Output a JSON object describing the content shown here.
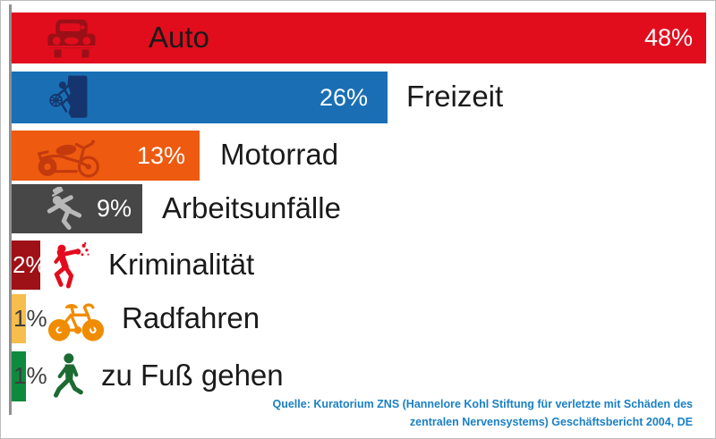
{
  "page": {
    "background": "#ffffff",
    "frame_border": "#bdbdbd",
    "axis_color": "#8f8f8f"
  },
  "chart_data": {
    "type": "bar",
    "orientation": "horizontal",
    "title": "",
    "xlabel": "",
    "ylabel": "",
    "xlim": [
      0,
      48
    ],
    "unit": "%",
    "grid": false,
    "legend": "none",
    "categories": [
      "Auto",
      "Freizeit",
      "Motorrad",
      "Arbeitsunfälle",
      "Kriminalität",
      "Radfahren",
      "zu Fuß gehen"
    ],
    "values": [
      48,
      26,
      13,
      9,
      2,
      1,
      1
    ],
    "bars": [
      {
        "label": "Auto",
        "value": 48,
        "pct_label": "48%",
        "color": "#e10d1d",
        "icon": "car-icon",
        "icon_color": "#9b1016",
        "pct_color": "#ffffff"
      },
      {
        "label": "Freizeit",
        "value": 26,
        "pct_label": "26%",
        "color": "#1a6fb4",
        "icon": "climber-icon",
        "icon_color": "#16356e",
        "pct_color": "#ffffff"
      },
      {
        "label": "Motorrad",
        "value": 13,
        "pct_label": "13%",
        "color": "#ee5a0f",
        "icon": "motorcycle-icon",
        "icon_color": "#c43a0e",
        "pct_color": "#ffffff"
      },
      {
        "label": "Arbeitsunfälle",
        "value": 9,
        "pct_label": "9%",
        "color": "#474747",
        "icon": "falling-person-icon",
        "icon_color": "#b8b8b8",
        "pct_color": "#ffffff"
      },
      {
        "label": "Kriminalität",
        "value": 2,
        "pct_label": "2%",
        "color": "#9e1116",
        "icon": "boxer-icon",
        "icon_color": "#e30c1e",
        "pct_color": "#ffffff"
      },
      {
        "label": "Radfahren",
        "value": 1,
        "pct_label": "1%",
        "color": "#f7bd4d",
        "icon": "bicycle-icon",
        "icon_color": "#f08c00",
        "pct_color": "#3d3d3d"
      },
      {
        "label": "zu Fuß gehen",
        "value": 1,
        "pct_label": "1%",
        "color": "#0d8a3e",
        "icon": "walking-person-icon",
        "icon_color": "#1d6b33",
        "pct_color": "#3d3d3d"
      }
    ],
    "source_line1": "Quelle: Kuratorium ZNS (Hannelore Kohl Stiftung für verletzte mit Schäden des",
    "source_line2": "zentralen Nervensystems) Geschäftsbericht 2004, DE",
    "source_color": "#1b80c5"
  }
}
